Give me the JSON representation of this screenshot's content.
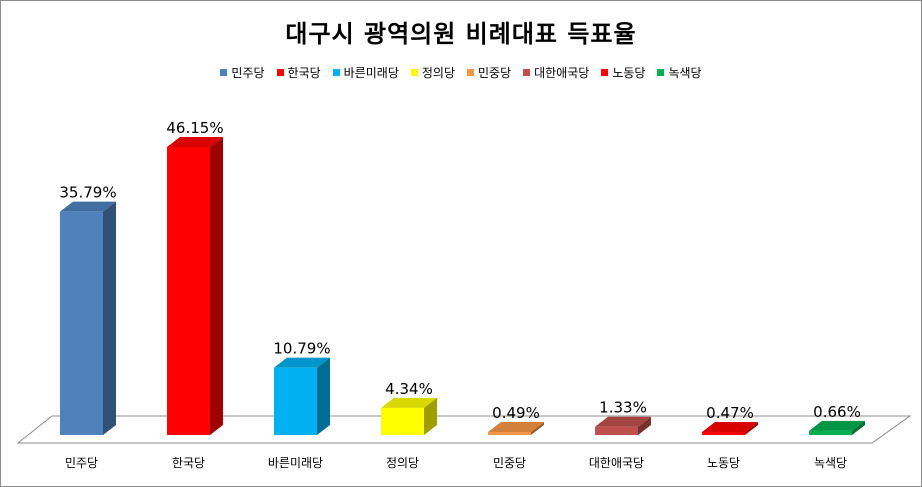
{
  "chart_data": {
    "type": "bar",
    "title": "대구시 광역의원 비례대표 득표율",
    "categories": [
      "민주당",
      "한국당",
      "바른미래당",
      "정의당",
      "민중당",
      "대한애국당",
      "노동당",
      "녹색당"
    ],
    "values": [
      35.79,
      46.15,
      10.79,
      4.34,
      0.49,
      1.33,
      0.47,
      0.66
    ],
    "data_labels": [
      "35.79%",
      "46.15%",
      "10.79%",
      "4.34%",
      "0.49%",
      "1.33%",
      "0.47%",
      "0.66%"
    ],
    "colors": [
      "#4f81bd",
      "#ff0000",
      "#00b0f0",
      "#ffff00",
      "#f79646",
      "#c0504d",
      "#ff0000",
      "#00b050"
    ],
    "legend_position": "top",
    "grid": false,
    "ylim": [
      0,
      50
    ],
    "style": "3d-column"
  }
}
